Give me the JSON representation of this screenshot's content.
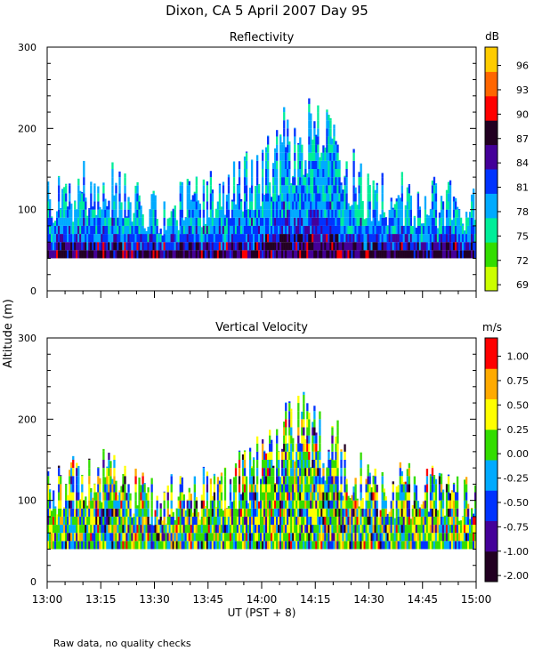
{
  "figure_title": "Dixon, CA   5 April 2007   Day   95",
  "footnote": "Raw data, no quality checks",
  "y_axis_label": "Altitude (m)",
  "x_axis_label": "UT   (PST + 8)",
  "colors": {
    "reflectivity_scale": [
      "#ccff00",
      "#33dd00",
      "#00ee99",
      "#00aaff",
      "#0033ff",
      "#440099",
      "#220022",
      "#ff0000",
      "#ff6600",
      "#ffcc00"
    ],
    "velocity_scale": [
      "#220022",
      "#440099",
      "#0033ff",
      "#00aaff",
      "#33dd00",
      "#ffff00",
      "#ffaa00",
      "#ff0000"
    ]
  },
  "chart_data": [
    {
      "type": "heatmap",
      "title": "Reflectivity",
      "units": "dB",
      "colorbar_ticks": [
        "96",
        "93",
        "90",
        "87",
        "84",
        "81",
        "78",
        "75",
        "72",
        "69"
      ],
      "xlabel": "",
      "ylabel": "Altitude (m)",
      "x_range": [
        "13:00",
        "15:00"
      ],
      "ylim": [
        0,
        300
      ],
      "y_ticks": [
        0,
        100,
        200,
        300
      ],
      "x_ticks": [],
      "data_lower_limit_m": 40,
      "approx_echo_top_m": [
        {
          "time": "13:00",
          "top": 140
        },
        {
          "time": "13:15",
          "top": 160
        },
        {
          "time": "13:30",
          "top": 120
        },
        {
          "time": "13:45",
          "top": 140
        },
        {
          "time": "14:00",
          "top": 180
        },
        {
          "time": "14:07",
          "top": 220
        },
        {
          "time": "14:15",
          "top": 240
        },
        {
          "time": "14:30",
          "top": 140
        },
        {
          "time": "14:45",
          "top": 140
        },
        {
          "time": "15:00",
          "top": 120
        }
      ]
    },
    {
      "type": "heatmap",
      "title": "Vertical Velocity",
      "units": "m/s",
      "colorbar_ticks": [
        "1.00",
        "0.75",
        "0.50",
        "0.25",
        "0.00",
        "-0.25",
        "-0.50",
        "-0.75",
        "-1.00",
        "-2.00"
      ],
      "xlabel": "UT   (PST + 8)",
      "ylabel": "Altitude (m)",
      "x_range": [
        "13:00",
        "15:00"
      ],
      "ylim": [
        0,
        300
      ],
      "y_ticks": [
        0,
        100,
        200,
        300
      ],
      "x_ticks": [
        "13:00",
        "13:15",
        "13:30",
        "13:45",
        "14:00",
        "14:15",
        "14:30",
        "14:45",
        "15:00"
      ],
      "data_lower_limit_m": 40,
      "approx_echo_top_m": [
        {
          "time": "13:00",
          "top": 140
        },
        {
          "time": "13:15",
          "top": 160
        },
        {
          "time": "13:30",
          "top": 120
        },
        {
          "time": "13:45",
          "top": 140
        },
        {
          "time": "14:00",
          "top": 180
        },
        {
          "time": "14:07",
          "top": 220
        },
        {
          "time": "14:15",
          "top": 230
        },
        {
          "time": "14:30",
          "top": 140
        },
        {
          "time": "14:45",
          "top": 140
        },
        {
          "time": "15:00",
          "top": 120
        }
      ]
    }
  ]
}
